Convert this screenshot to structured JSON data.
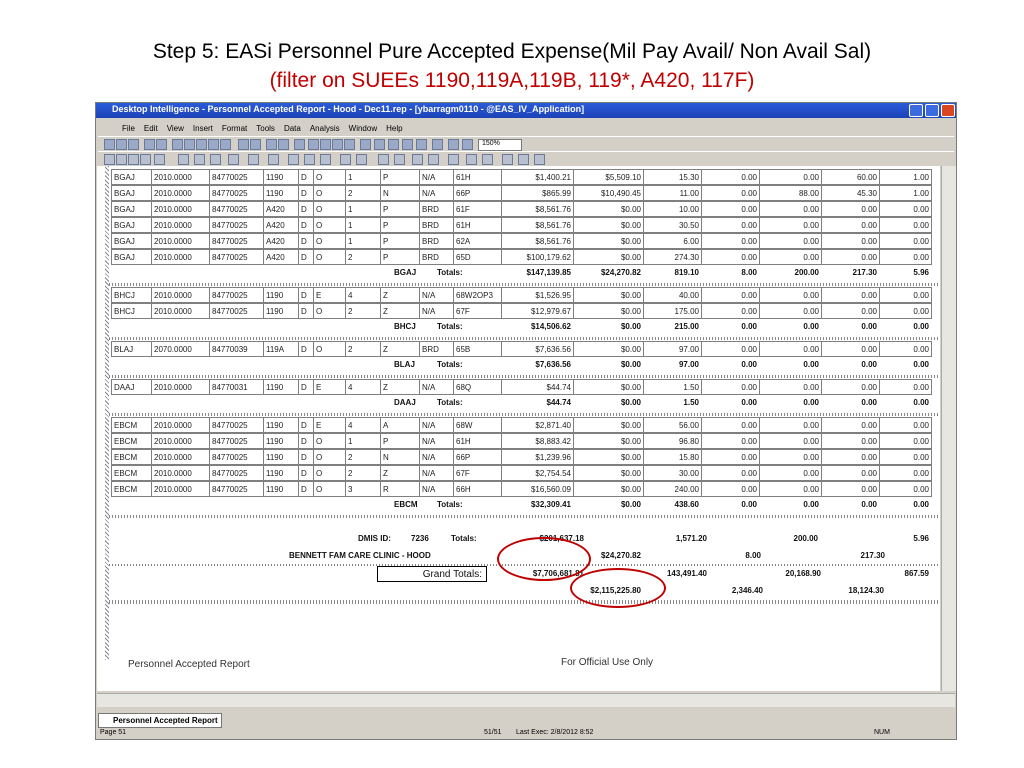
{
  "header": {
    "title": "Step 5:  EASi Personnel Pure Accepted Expense(Mil Pay Avail/ Non Avail Sal)",
    "subtitle": "(filter on SUEEs 1190,119A,119B, 119*, A420, 117F)"
  },
  "window": {
    "title": "Desktop Intelligence - Personnel Accepted Report - Hood - Dec11.rep - [ybarragm0110 - @EAS_IV_Application]",
    "menu": [
      "File",
      "Edit",
      "View",
      "Insert",
      "Format",
      "Tools",
      "Data",
      "Analysis",
      "Window",
      "Help"
    ],
    "zoom": "150%"
  },
  "report": {
    "groups": [
      {
        "rows": [
          [
            "BGAJ",
            "2010.0000",
            "84770025",
            "1190",
            "D",
            "O",
            "1",
            "P",
            "N/A",
            "61H",
            "$1,400.21",
            "$5,509.10",
            "15.30",
            "0.00",
            "0.00",
            "60.00",
            "1.00"
          ],
          [
            "BGAJ",
            "2010.0000",
            "84770025",
            "1190",
            "D",
            "O",
            "2",
            "N",
            "N/A",
            "66P",
            "$865.99",
            "$10,490.45",
            "11.00",
            "0.00",
            "88.00",
            "45.30",
            "1.00"
          ],
          [
            "BGAJ",
            "2010.0000",
            "84770025",
            "A420",
            "D",
            "O",
            "1",
            "P",
            "BRD",
            "61F",
            "$8,561.76",
            "$0.00",
            "10.00",
            "0.00",
            "0.00",
            "0.00",
            "0.00"
          ],
          [
            "BGAJ",
            "2010.0000",
            "84770025",
            "A420",
            "D",
            "O",
            "1",
            "P",
            "BRD",
            "61H",
            "$8,561.76",
            "$0.00",
            "30.50",
            "0.00",
            "0.00",
            "0.00",
            "0.00"
          ],
          [
            "BGAJ",
            "2010.0000",
            "84770025",
            "A420",
            "D",
            "O",
            "1",
            "P",
            "BRD",
            "62A",
            "$8,561.76",
            "$0.00",
            "6.00",
            "0.00",
            "0.00",
            "0.00",
            "0.00"
          ],
          [
            "BGAJ",
            "2010.0000",
            "84770025",
            "A420",
            "D",
            "O",
            "2",
            "P",
            "BRD",
            "65D",
            "$100,179.62",
            "$0.00",
            "274.30",
            "0.00",
            "0.00",
            "0.00",
            "0.00"
          ]
        ],
        "totals": {
          "code": "BGAJ",
          "label": "Totals:",
          "values": [
            "$147,139.85",
            "$24,270.82",
            "819.10",
            "8.00",
            "200.00",
            "217.30",
            "5.96"
          ]
        }
      },
      {
        "rows": [
          [
            "BHCJ",
            "2010.0000",
            "84770025",
            "1190",
            "D",
            "E",
            "4",
            "Z",
            "N/A",
            "68W2OP3",
            "$1,526.95",
            "$0.00",
            "40.00",
            "0.00",
            "0.00",
            "0.00",
            "0.00"
          ],
          [
            "BHCJ",
            "2010.0000",
            "84770025",
            "1190",
            "D",
            "O",
            "2",
            "Z",
            "N/A",
            "67F",
            "$12,979.67",
            "$0.00",
            "175.00",
            "0.00",
            "0.00",
            "0.00",
            "0.00"
          ]
        ],
        "totals": {
          "code": "BHCJ",
          "label": "Totals:",
          "values": [
            "$14,506.62",
            "$0.00",
            "215.00",
            "0.00",
            "0.00",
            "0.00",
            "0.00"
          ]
        }
      },
      {
        "rows": [
          [
            "BLAJ",
            "2070.0000",
            "84770039",
            "119A",
            "D",
            "O",
            "2",
            "Z",
            "BRD",
            "65B",
            "$7,636.56",
            "$0.00",
            "97.00",
            "0.00",
            "0.00",
            "0.00",
            "0.00"
          ]
        ],
        "totals": {
          "code": "BLAJ",
          "label": "Totals:",
          "values": [
            "$7,636.56",
            "$0.00",
            "97.00",
            "0.00",
            "0.00",
            "0.00",
            "0.00"
          ]
        }
      },
      {
        "rows": [
          [
            "DAAJ",
            "2010.0000",
            "84770031",
            "1190",
            "D",
            "E",
            "4",
            "Z",
            "N/A",
            "68Q",
            "$44.74",
            "$0.00",
            "1.50",
            "0.00",
            "0.00",
            "0.00",
            "0.00"
          ]
        ],
        "totals": {
          "code": "DAAJ",
          "label": "Totals:",
          "values": [
            "$44.74",
            "$0.00",
            "1.50",
            "0.00",
            "0.00",
            "0.00",
            "0.00"
          ]
        }
      },
      {
        "rows": [
          [
            "EBCM",
            "2010.0000",
            "84770025",
            "1190",
            "D",
            "E",
            "4",
            "A",
            "N/A",
            "68W",
            "$2,871.40",
            "$0.00",
            "56.00",
            "0.00",
            "0.00",
            "0.00",
            "0.00"
          ],
          [
            "EBCM",
            "2010.0000",
            "84770025",
            "1190",
            "D",
            "O",
            "1",
            "P",
            "N/A",
            "61H",
            "$8,883.42",
            "$0.00",
            "96.80",
            "0.00",
            "0.00",
            "0.00",
            "0.00"
          ],
          [
            "EBCM",
            "2010.0000",
            "84770025",
            "1190",
            "D",
            "O",
            "2",
            "N",
            "N/A",
            "66P",
            "$1,239.96",
            "$0.00",
            "15.80",
            "0.00",
            "0.00",
            "0.00",
            "0.00"
          ],
          [
            "EBCM",
            "2010.0000",
            "84770025",
            "1190",
            "D",
            "O",
            "2",
            "Z",
            "N/A",
            "67F",
            "$2,754.54",
            "$0.00",
            "30.00",
            "0.00",
            "0.00",
            "0.00",
            "0.00"
          ],
          [
            "EBCM",
            "2010.0000",
            "84770025",
            "1190",
            "D",
            "O",
            "3",
            "R",
            "N/A",
            "66H",
            "$16,560.09",
            "$0.00",
            "240.00",
            "0.00",
            "0.00",
            "0.00",
            "0.00"
          ]
        ],
        "totals": {
          "code": "EBCM",
          "label": "Totals:",
          "values": [
            "$32,309.41",
            "$0.00",
            "438.60",
            "0.00",
            "0.00",
            "0.00",
            "0.00"
          ]
        }
      }
    ],
    "dmis": {
      "label": "DMIS ID:",
      "id": "7236",
      "totals": "Totals:",
      "values": [
        "$201,637.18",
        "1,571.20",
        "200.00",
        "5.96"
      ]
    },
    "clinic": {
      "name": "BENNETT FAM CARE CLINIC - HOOD",
      "values": [
        "$24,270.82",
        "8.00",
        "217.30"
      ]
    },
    "grand": {
      "label": "Grand Totals:",
      "values": [
        "$7,706,681.81",
        "143,491.40",
        "20,168.90",
        "867.59"
      ],
      "values2": [
        "$2,115,225.80",
        "2,346.40",
        "18,124.30"
      ]
    },
    "footer_left": "Personnel Accepted Report",
    "footer_right": "For Official Use Only"
  },
  "tab": "Personnel Accepted Report",
  "status": {
    "page": "Page 51",
    "count": "51/51",
    "last_exec": "Last Exec: 2/8/2012 8:52",
    "mode": "NUM"
  }
}
